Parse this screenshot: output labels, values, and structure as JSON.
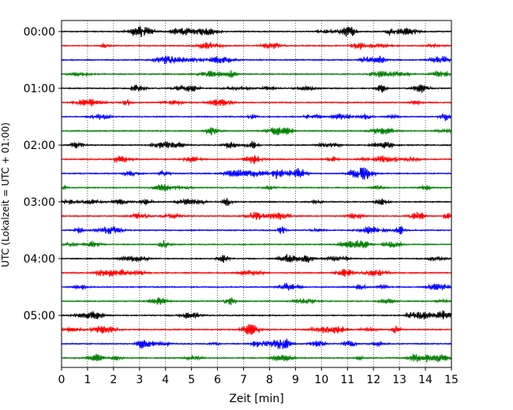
{
  "chart_data": {
    "type": "line",
    "title": "",
    "xlabel": "Zeit  [min]",
    "ylabel": "UTC (Lokalzeit = UTC + 01:00)",
    "xlim": [
      0,
      15
    ],
    "x_ticks": [
      "0",
      "1",
      "2",
      "3",
      "4",
      "5",
      "6",
      "7",
      "8",
      "9",
      "10",
      "11",
      "12",
      "13",
      "14",
      "15"
    ],
    "y_ticks": [
      "00:00",
      "01:00",
      "02:00",
      "03:00",
      "04:00",
      "05:00"
    ],
    "traces_per_hour": 4,
    "trace_minutes": 15,
    "trace_colors": [
      "#000000",
      "#ff0000",
      "#0000ff",
      "#008000"
    ],
    "grid": "vertical dotted at each minute",
    "traces": [
      {
        "start": "00:00",
        "color": "#000000"
      },
      {
        "start": "00:15",
        "color": "#ff0000"
      },
      {
        "start": "00:30",
        "color": "#0000ff"
      },
      {
        "start": "00:45",
        "color": "#008000"
      },
      {
        "start": "01:00",
        "color": "#000000"
      },
      {
        "start": "01:15",
        "color": "#ff0000"
      },
      {
        "start": "01:30",
        "color": "#0000ff"
      },
      {
        "start": "01:45",
        "color": "#008000"
      },
      {
        "start": "02:00",
        "color": "#000000"
      },
      {
        "start": "02:15",
        "color": "#ff0000"
      },
      {
        "start": "02:30",
        "color": "#0000ff"
      },
      {
        "start": "02:45",
        "color": "#008000"
      },
      {
        "start": "03:00",
        "color": "#000000"
      },
      {
        "start": "03:15",
        "color": "#ff0000"
      },
      {
        "start": "03:30",
        "color": "#0000ff"
      },
      {
        "start": "03:45",
        "color": "#008000"
      },
      {
        "start": "04:00",
        "color": "#000000"
      },
      {
        "start": "04:15",
        "color": "#ff0000"
      },
      {
        "start": "04:30",
        "color": "#0000ff"
      },
      {
        "start": "04:45",
        "color": "#008000"
      },
      {
        "start": "05:00",
        "color": "#000000"
      },
      {
        "start": "05:15",
        "color": "#ff0000"
      },
      {
        "start": "05:30",
        "color": "#0000ff"
      },
      {
        "start": "05:45",
        "color": "#008000"
      }
    ]
  }
}
